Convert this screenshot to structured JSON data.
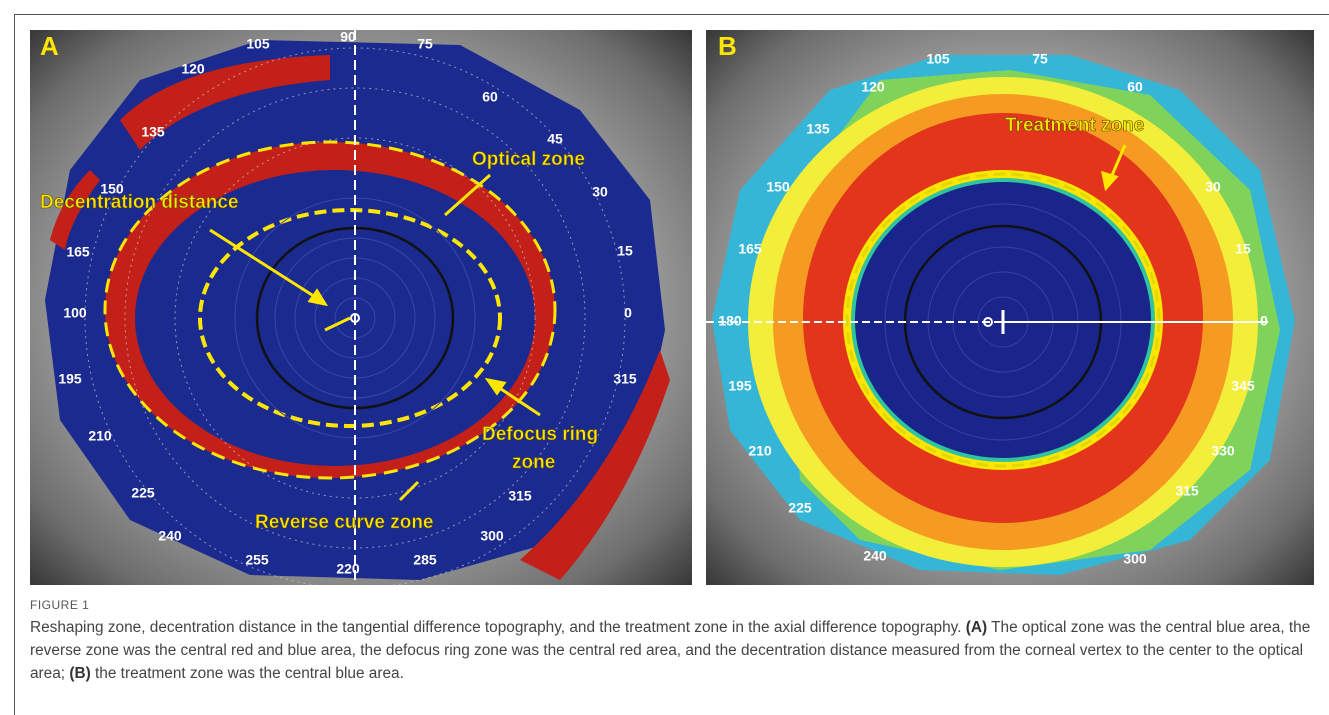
{
  "figure": {
    "panels": [
      {
        "label": "A",
        "annotations": [
          "Optical zone",
          "Decentration distance",
          "Defocus ring",
          "zone",
          "Reverse curve zone"
        ],
        "degree_labels": [
          "105",
          "90",
          "75",
          "120",
          "60",
          "135",
          "45",
          "150",
          "30",
          "165",
          "15",
          "100",
          "0",
          "195",
          "315",
          "210",
          "225",
          "315",
          "240",
          "300",
          "255",
          "220",
          "285"
        ]
      },
      {
        "label": "B",
        "annotations": [
          "Treatment zone"
        ],
        "degree_labels": [
          "105",
          "75",
          "120",
          "60",
          "135",
          "150",
          "30",
          "165",
          "15",
          "180",
          "0",
          "195",
          "345",
          "210",
          "330",
          "225",
          "315",
          "240",
          "300"
        ]
      }
    ],
    "caption": {
      "label": "FIGURE 1",
      "segments": [
        "Reshaping zone, decentration distance in the tangential difference topography, and the treatment zone in the axial difference topography. ",
        "(A)",
        " The optical zone was the central blue area, the reverse zone was the central red and blue area, the defocus ring zone was the central red area, and the decentration distance measured from the corneal vertex to the center to the optical area; ",
        "(B)",
        " the treatment zone was the central blue area."
      ]
    }
  }
}
